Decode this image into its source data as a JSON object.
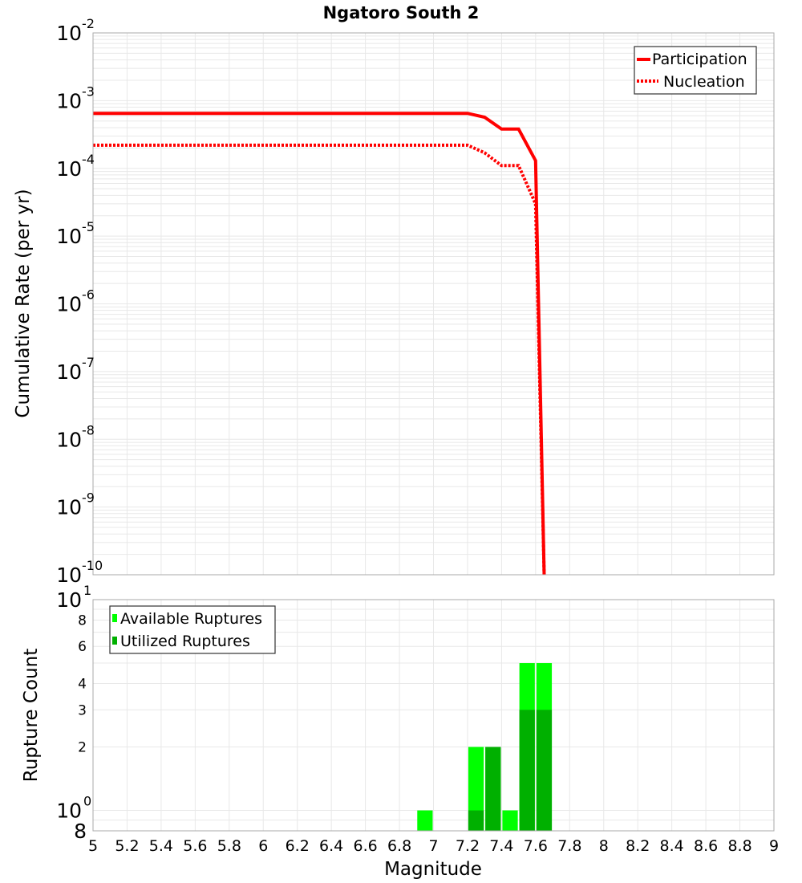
{
  "chart_data": [
    {
      "type": "line",
      "title": "Ngatoro South 2",
      "xlabel": "",
      "ylabel": "Cumulative Rate (per yr)",
      "yscale": "log",
      "ylim": [
        1e-10,
        0.01
      ],
      "xlim": [
        5,
        9
      ],
      "grid": true,
      "legend_position": "upper-right",
      "y_ticks": [
        {
          "base": "10",
          "exp": "-2",
          "value": 0.01
        },
        {
          "base": "10",
          "exp": "-3",
          "value": 0.001
        },
        {
          "base": "10",
          "exp": "-4",
          "value": 0.0001
        },
        {
          "base": "10",
          "exp": "-5",
          "value": 1e-05
        },
        {
          "base": "10",
          "exp": "-6",
          "value": 1e-06
        },
        {
          "base": "10",
          "exp": "-7",
          "value": 1e-07
        },
        {
          "base": "10",
          "exp": "-8",
          "value": 1e-08
        },
        {
          "base": "10",
          "exp": "-9",
          "value": 1e-09
        },
        {
          "base": "10",
          "exp": "-10",
          "value": 1e-10
        }
      ],
      "series": [
        {
          "name": "Participation",
          "style": "solid",
          "color": "#ff0000",
          "x": [
            5.0,
            7.2,
            7.3,
            7.4,
            7.5,
            7.6,
            7.65
          ],
          "values": [
            0.00065,
            0.00065,
            0.00057,
            0.00038,
            0.00038,
            0.00013,
            1e-10
          ]
        },
        {
          "name": "Nucleation",
          "style": "dotted",
          "color": "#ff0000",
          "x": [
            5.0,
            7.2,
            7.3,
            7.4,
            7.5,
            7.6,
            7.65
          ],
          "values": [
            0.00022,
            0.00022,
            0.00017,
            0.00011,
            0.00011,
            3e-05,
            1e-10
          ]
        }
      ]
    },
    {
      "type": "bar",
      "title": "",
      "xlabel": "Magnitude",
      "ylabel": "Rupture Count",
      "yscale": "log",
      "ylim": [
        0.8,
        10
      ],
      "xlim": [
        5,
        9
      ],
      "grid": true,
      "legend_position": "upper-left",
      "x_ticks": [
        "5",
        "5.2",
        "5.4",
        "5.6",
        "5.8",
        "6",
        "6.2",
        "6.4",
        "6.6",
        "6.8",
        "7",
        "7.2",
        "7.4",
        "7.6",
        "7.8",
        "8",
        "8.2",
        "8.4",
        "8.6",
        "8.8",
        "9"
      ],
      "y_ticks": [
        {
          "label": "10",
          "exp": "1",
          "value": 10,
          "major": true
        },
        {
          "label": "8",
          "value": 8
        },
        {
          "label": "6",
          "value": 6
        },
        {
          "label": "4",
          "value": 4
        },
        {
          "label": "3",
          "value": 3
        },
        {
          "label": "2",
          "value": 2
        },
        {
          "label": "10",
          "exp": "0",
          "value": 1,
          "major": true
        },
        {
          "label": "8",
          "value": 0.8,
          "major": true
        }
      ],
      "categories": [
        6.95,
        7.25,
        7.35,
        7.45,
        7.55,
        7.65
      ],
      "bar_width": 0.1,
      "series": [
        {
          "name": "Available Ruptures",
          "color": "#00ff00",
          "values": [
            1,
            2,
            2,
            1,
            5,
            5
          ]
        },
        {
          "name": "Utilized Ruptures",
          "color": "#00b000",
          "values": [
            0,
            1,
            2,
            0,
            3,
            3
          ]
        }
      ]
    }
  ]
}
